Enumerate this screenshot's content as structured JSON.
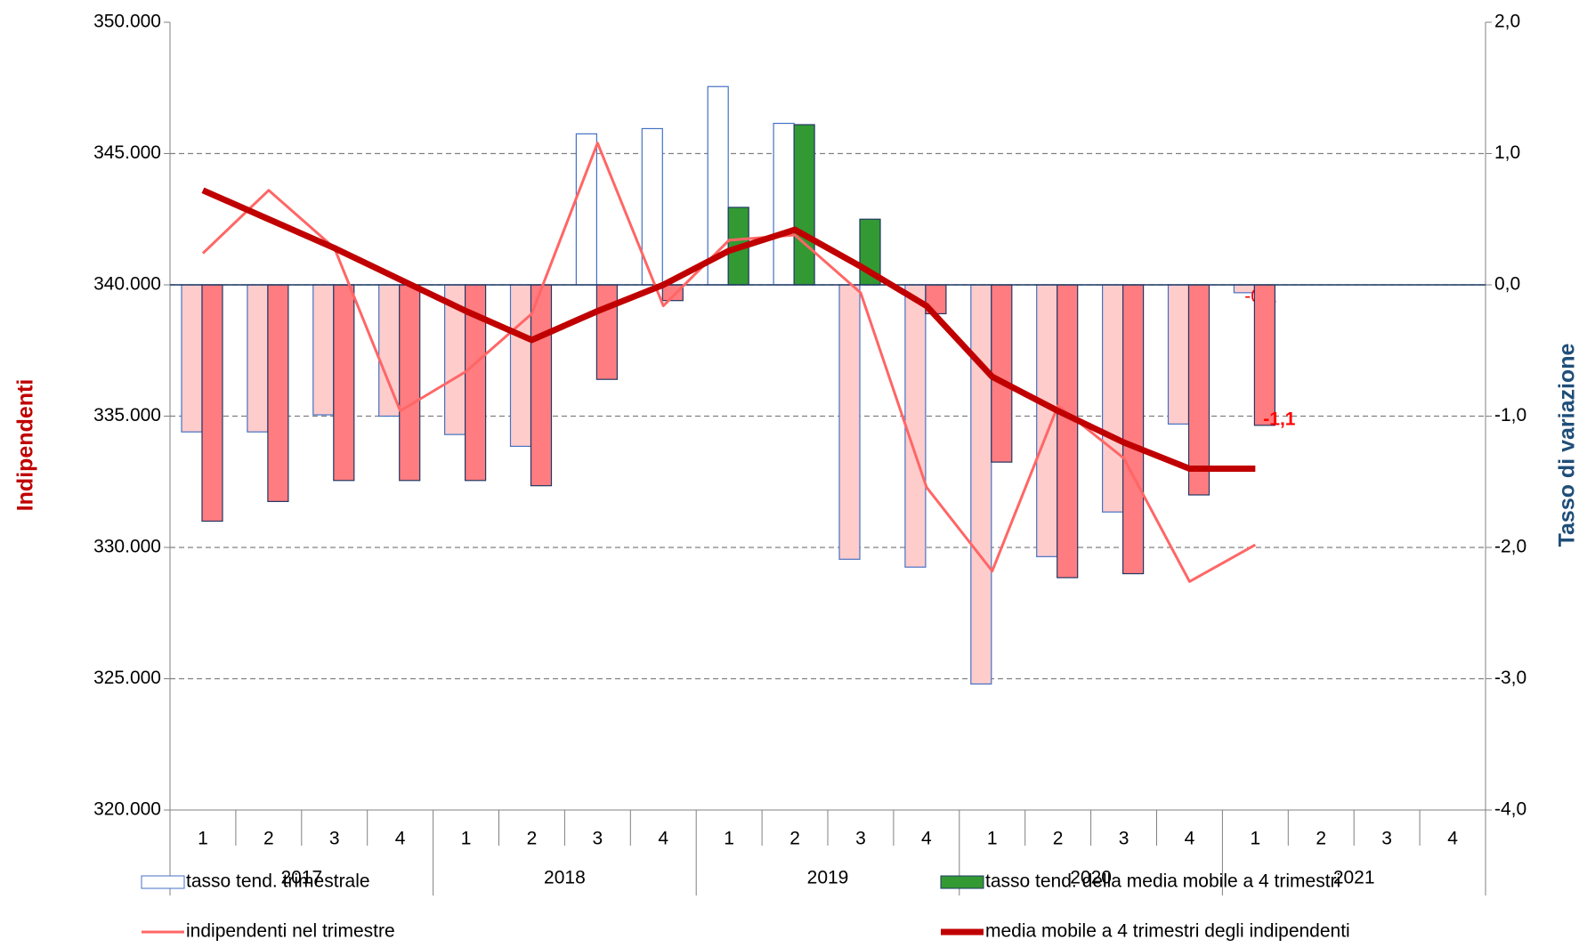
{
  "chart_data": {
    "type": "bar-line",
    "y_label": "Indipendenti",
    "y2_label": "Tasso di variazione",
    "categories": [
      "1",
      "2",
      "3",
      "4",
      "1",
      "2",
      "3",
      "4",
      "1",
      "2",
      "3",
      "4",
      "1",
      "2",
      "3",
      "4",
      "1",
      "2",
      "3",
      "4"
    ],
    "years": [
      "2017",
      "2018",
      "2019",
      "2020",
      "2021"
    ],
    "ylim": [
      320000,
      350000
    ],
    "yticks": [
      {
        "value": 320000,
        "label": "320.000"
      },
      {
        "value": 325000,
        "label": "325.000"
      },
      {
        "value": 330000,
        "label": "330.000"
      },
      {
        "value": 335000,
        "label": "335.000"
      },
      {
        "value": 340000,
        "label": "340.000"
      },
      {
        "value": 345000,
        "label": "345.000"
      },
      {
        "value": 350000,
        "label": "350.000"
      }
    ],
    "y2lim": [
      -4,
      2
    ],
    "y2ticks": [
      {
        "value": -4,
        "label": "-4,0"
      },
      {
        "value": -3,
        "label": "-3,0"
      },
      {
        "value": -2,
        "label": "-2,0"
      },
      {
        "value": -1,
        "label": "-1,0"
      },
      {
        "value": 0,
        "label": "0,0"
      },
      {
        "value": 1,
        "label": "1,0"
      },
      {
        "value": 2,
        "label": "2,0"
      }
    ],
    "grid": true,
    "series": [
      {
        "name": "tasso tend. trimestrale",
        "kind": "bar",
        "axis": "y2",
        "color": "#ffffff",
        "negative_color": "#ffcccc",
        "edge": "#4472c4",
        "values": [
          -1.12,
          -1.12,
          -0.99,
          -1.0,
          -1.14,
          -1.23,
          1.15,
          1.19,
          1.51,
          1.23,
          -2.09,
          -2.15,
          -3.04,
          -2.07,
          -1.73,
          -1.06,
          -0.06,
          null,
          null,
          null
        ],
        "value_labels": [
          null,
          null,
          null,
          null,
          null,
          null,
          null,
          null,
          null,
          null,
          null,
          null,
          null,
          null,
          null,
          null,
          "-0,1",
          null,
          null,
          null
        ]
      },
      {
        "name": "tasso tend. della media mobile a 4 trimestri",
        "kind": "bar",
        "axis": "y2",
        "color": "#339933",
        "negative_color": "#ff7c80",
        "edge": "#1f3864",
        "values": [
          -1.8,
          -1.65,
          -1.49,
          -1.49,
          -1.49,
          -1.53,
          -0.72,
          -0.12,
          0.59,
          1.22,
          0.5,
          -0.22,
          -1.35,
          -2.23,
          -2.2,
          -1.6,
          -1.07,
          null,
          null,
          null
        ],
        "value_labels": [
          null,
          null,
          null,
          null,
          null,
          null,
          null,
          null,
          null,
          null,
          null,
          null,
          null,
          null,
          null,
          null,
          "-1,1",
          null,
          null,
          null
        ]
      },
      {
        "name": "indipendenti nel trimestre",
        "kind": "line",
        "color": "#ff6666",
        "width": 3,
        "values": [
          341200,
          343600,
          341400,
          335200,
          336700,
          338900,
          345400,
          339200,
          341700,
          341900,
          339700,
          332300,
          329100,
          335400,
          333400,
          328700,
          330100,
          null,
          null,
          null
        ]
      },
      {
        "name": "media mobile a 4 trimestri degli indipendenti",
        "kind": "line",
        "color": "#c00000",
        "width": 7,
        "values": [
          343600,
          342500,
          341400,
          340200,
          339000,
          337900,
          339000,
          340000,
          341300,
          342100,
          340700,
          339200,
          336500,
          335200,
          334000,
          333000,
          333000,
          null,
          null,
          null
        ]
      }
    ]
  }
}
